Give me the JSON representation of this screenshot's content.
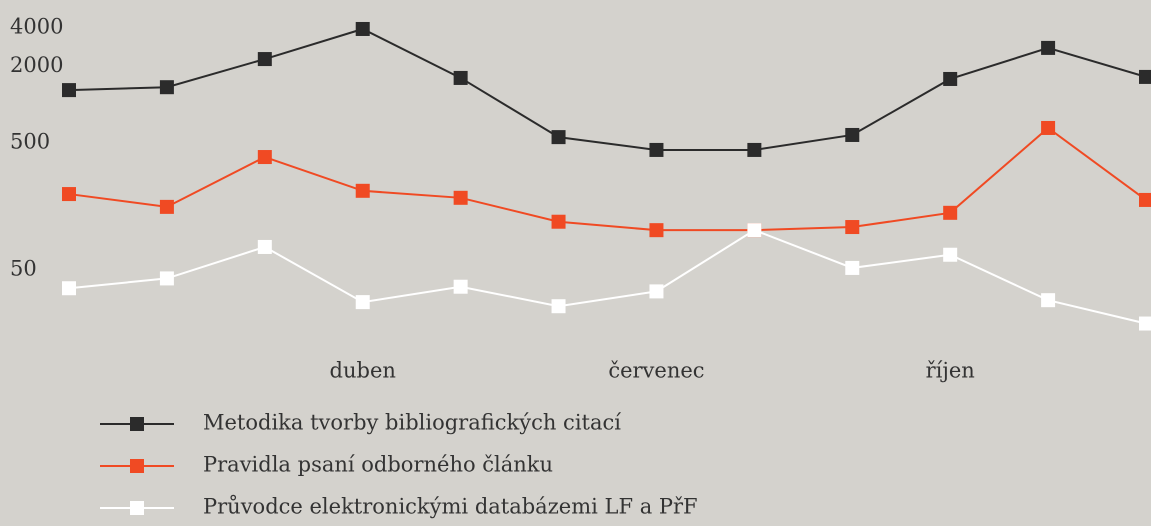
{
  "chart_data": {
    "type": "line",
    "categories": [
      null,
      null,
      null,
      "duben",
      null,
      null,
      "červenec",
      null,
      null,
      "říjen",
      null,
      null
    ],
    "series": [
      {
        "name": "Metodika tvorby bibliografických citací",
        "color": "#2b2b2b",
        "values": [
          1300,
          1370,
          2280,
          3930,
          1620,
          555,
          440,
          440,
          577,
          1590,
          2790,
          1650
        ]
      },
      {
        "name": "Pravidla psaní odborného článku",
        "color": "#f04a23",
        "values": [
          198,
          157,
          387,
          210,
          185,
          120,
          103,
          103,
          109,
          141,
          655,
          178
        ]
      },
      {
        "name": "Průvodce elektronickými databázemi LF a PřF",
        "color": "#ffffff",
        "values": [
          36,
          43,
          76,
          28,
          37,
          26,
          34,
          103,
          52,
          66,
          29,
          19
        ]
      }
    ],
    "ylim": [
      15,
      4500
    ],
    "yticks": [
      50,
      500,
      2000,
      4000
    ],
    "log_scale": true,
    "grid": false
  }
}
